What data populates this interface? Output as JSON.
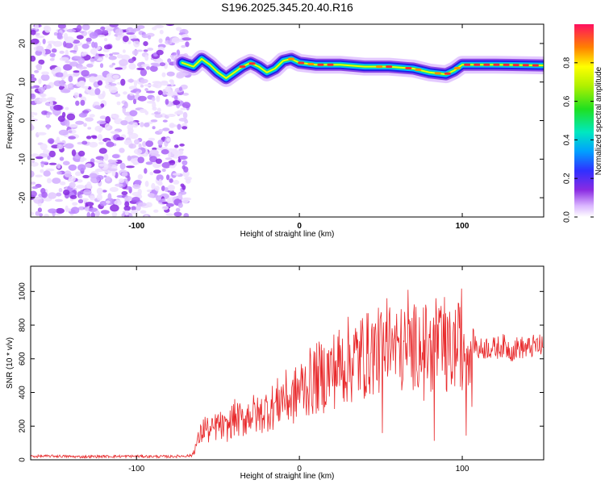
{
  "title": "S196.2025.345.20.40.R16",
  "chart_data": [
    {
      "type": "heatmap",
      "name": "spectrogram",
      "xlabel": "Height of straight line (km)",
      "ylabel": "Frequency (Hz)",
      "xlim": [
        -165,
        150
      ],
      "ylim": [
        -25,
        25
      ],
      "xticks": [
        -100,
        0,
        100
      ],
      "yticks": [
        20,
        10,
        0,
        -10,
        -20
      ],
      "colorbar": {
        "label": "Normalized spectral amplitude",
        "range": [
          0,
          1
        ],
        "ticks": [
          0.0,
          0.2,
          0.4,
          0.6,
          0.8
        ]
      },
      "noise_region_km": [
        -165,
        -72
      ],
      "signal_track": [
        {
          "x": -72,
          "f": 15.0
        },
        {
          "x": -65,
          "f": 14.0
        },
        {
          "x": -60,
          "f": 16.0
        },
        {
          "x": -55,
          "f": 14.5
        },
        {
          "x": -50,
          "f": 12.5
        },
        {
          "x": -45,
          "f": 11.0
        },
        {
          "x": -40,
          "f": 12.5
        },
        {
          "x": -35,
          "f": 14.0
        },
        {
          "x": -30,
          "f": 15.0
        },
        {
          "x": -25,
          "f": 14.0
        },
        {
          "x": -20,
          "f": 12.5
        },
        {
          "x": -15,
          "f": 13.5
        },
        {
          "x": -10,
          "f": 15.5
        },
        {
          "x": -5,
          "f": 16.0
        },
        {
          "x": 0,
          "f": 15.0
        },
        {
          "x": 10,
          "f": 14.5
        },
        {
          "x": 25,
          "f": 14.5
        },
        {
          "x": 40,
          "f": 14.0
        },
        {
          "x": 55,
          "f": 14.0
        },
        {
          "x": 70,
          "f": 13.5
        },
        {
          "x": 80,
          "f": 12.5
        },
        {
          "x": 90,
          "f": 12.0
        },
        {
          "x": 95,
          "f": 13.0
        },
        {
          "x": 100,
          "f": 14.5
        },
        {
          "x": 120,
          "f": 14.5
        },
        {
          "x": 150,
          "f": 14.3
        }
      ]
    },
    {
      "type": "line",
      "name": "snr",
      "xlabel": "Height of straight line (km)",
      "ylabel": "SNR (10 * v/v)",
      "xlim": [
        -165,
        150
      ],
      "ylim": [
        0,
        1150
      ],
      "xticks": [
        -100,
        0,
        100
      ],
      "yticks": [
        0,
        200,
        400,
        600,
        800,
        1000
      ],
      "series": [
        {
          "name": "SNR",
          "color": "#e8282a",
          "x": [
            -165,
            -150,
            -135,
            -120,
            -100,
            -80,
            -66,
            -62,
            -58,
            -55,
            -50,
            -45,
            -40,
            -35,
            -30,
            -25,
            -20,
            -15,
            -10,
            -5,
            0,
            5,
            10,
            15,
            20,
            25,
            30,
            35,
            40,
            45,
            50,
            55,
            60,
            65,
            70,
            75,
            80,
            85,
            90,
            95,
            100,
            103,
            106,
            110,
            115,
            120,
            125,
            130,
            135,
            140,
            145,
            150
          ],
          "values": [
            20,
            22,
            18,
            20,
            21,
            19,
            25,
            120,
            200,
            160,
            210,
            180,
            250,
            230,
            280,
            260,
            300,
            320,
            380,
            350,
            420,
            450,
            480,
            500,
            530,
            560,
            590,
            600,
            620,
            640,
            650,
            700,
            660,
            650,
            670,
            700,
            640,
            680,
            620,
            660,
            700,
            640,
            720,
            650,
            670,
            660,
            680,
            650,
            670,
            660,
            680,
            670
          ]
        }
      ]
    }
  ]
}
